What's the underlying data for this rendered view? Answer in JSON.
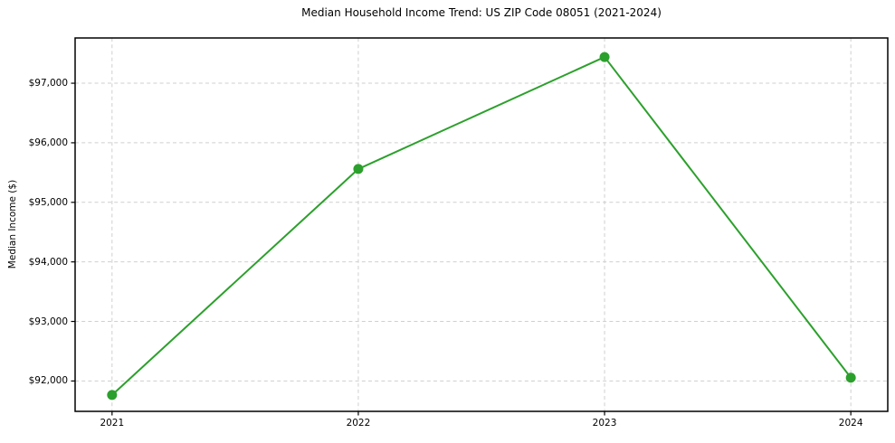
{
  "chart_data": {
    "type": "line",
    "title": "Median Household Income Trend: US ZIP Code 08051 (2021-2024)",
    "xlabel": "",
    "ylabel": "Median Income ($)",
    "x": [
      2021,
      2022,
      2023,
      2024
    ],
    "series": [
      {
        "name": "Median Household Income",
        "values": [
          91765,
          95560,
          97440,
          92055
        ],
        "color": "#2ca02c"
      }
    ],
    "xtick_labels": [
      "2021",
      "2022",
      "2023",
      "2024"
    ],
    "yticks": [
      92000,
      93000,
      94000,
      95000,
      96000,
      97000
    ],
    "ytick_labels": [
      "$92,000",
      "$93,000",
      "$94,000",
      "$95,000",
      "$96,000",
      "$97,000"
    ],
    "xlim": [
      2020.85,
      2024.15
    ],
    "ylim": [
      91490,
      97760
    ],
    "grid": "dashed-both",
    "grid_color": "#cfcfcf",
    "spine_color": "#000000",
    "background_color": "#ffffff",
    "legend": false,
    "marker": "circle"
  }
}
